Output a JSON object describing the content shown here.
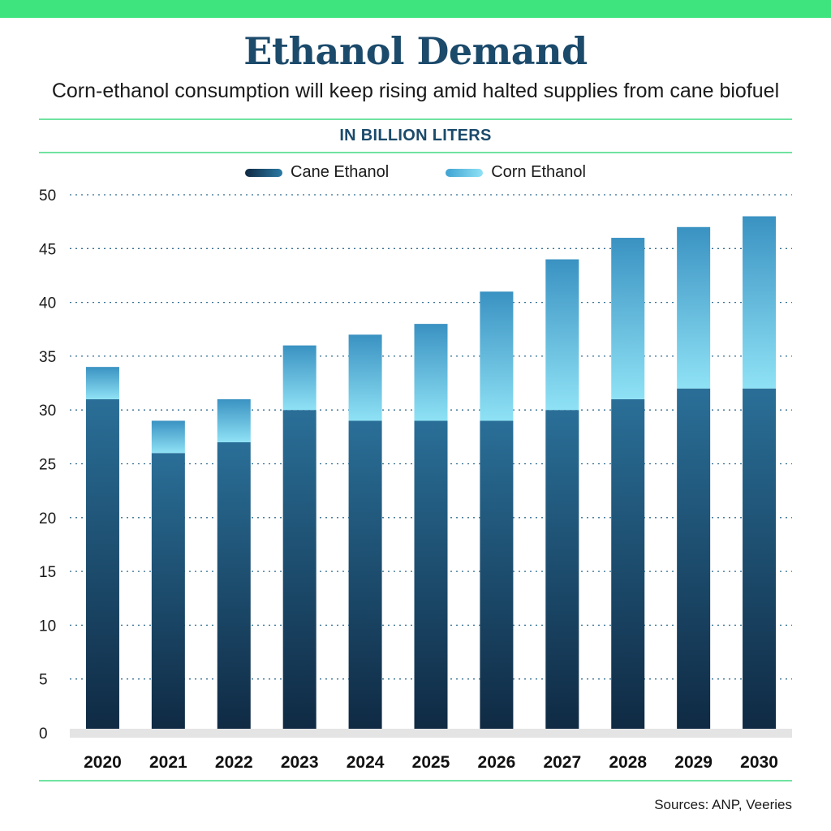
{
  "title": "Ethanol Demand",
  "subtitle": "Corn-ethanol consumption will keep rising amid halted supplies from cane biofuel",
  "units_label": "IN BILLION LITERS",
  "source": "Sources: ANP, Veeries",
  "colors": {
    "accent_bar": "#3ee57e",
    "title": "#1b4a6b",
    "cane_dark": "#0f2942",
    "cane_light": "#2b7aa5",
    "corn_dark": "#3a92c2",
    "corn_light": "#8fe2f5"
  },
  "chart_data": {
    "type": "bar",
    "stacked": true,
    "categories": [
      "2020",
      "2021",
      "2022",
      "2023",
      "2024",
      "2025",
      "2026",
      "2027",
      "2028",
      "2029",
      "2030"
    ],
    "series": [
      {
        "name": "Cane Ethanol",
        "values": [
          31,
          26,
          27,
          30,
          29,
          29,
          29,
          30,
          31,
          32,
          32
        ]
      },
      {
        "name": "Corn Ethanol",
        "values": [
          3,
          3,
          4,
          6,
          8,
          9,
          12,
          14,
          15,
          15,
          16
        ]
      }
    ],
    "ylim": [
      0,
      50
    ],
    "yticks": [
      0,
      5,
      10,
      15,
      20,
      25,
      30,
      35,
      40,
      45,
      50
    ],
    "grid": true,
    "legend": "top-center"
  }
}
